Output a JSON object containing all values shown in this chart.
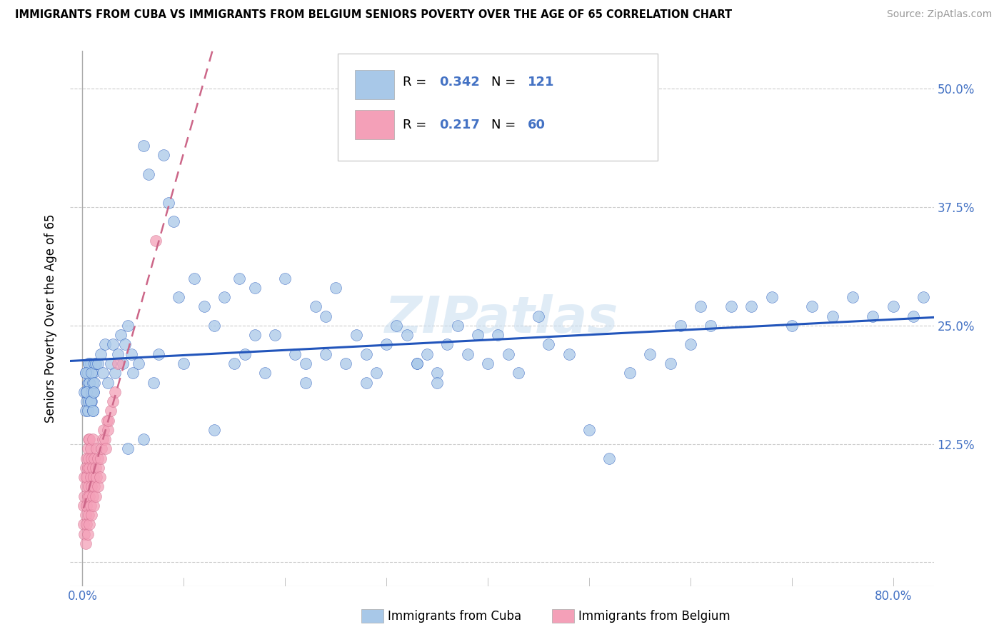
{
  "title": "IMMIGRANTS FROM CUBA VS IMMIGRANTS FROM BELGIUM SENIORS POVERTY OVER THE AGE OF 65 CORRELATION CHART",
  "source": "Source: ZipAtlas.com",
  "ylabel": "Seniors Poverty Over the Age of 65",
  "x_ticks": [
    0.0,
    0.1,
    0.2,
    0.3,
    0.4,
    0.5,
    0.6,
    0.7,
    0.8
  ],
  "x_tick_labels": [
    "0.0%",
    "",
    "",
    "",
    "",
    "",
    "",
    "",
    "80.0%"
  ],
  "y_ticks": [
    0.0,
    0.125,
    0.25,
    0.375,
    0.5
  ],
  "y_tick_labels_right": [
    "",
    "12.5%",
    "25.0%",
    "37.5%",
    "50.0%"
  ],
  "xlim": [
    -0.012,
    0.84
  ],
  "ylim": [
    -0.025,
    0.54
  ],
  "legend1_label": "Immigrants from Cuba",
  "legend2_label": "Immigrants from Belgium",
  "R_cuba": "0.342",
  "N_cuba": "121",
  "R_belgium": "0.217",
  "N_belgium": "60",
  "color_cuba": "#a8c8e8",
  "color_belgium": "#f4a0b8",
  "color_cuba_line": "#2255bb",
  "color_belgium_line": "#cc6688",
  "watermark": "ZIPatlas",
  "cuba_x": [
    0.002,
    0.003,
    0.004,
    0.005,
    0.006,
    0.003,
    0.004,
    0.005,
    0.006,
    0.007,
    0.008,
    0.009,
    0.01,
    0.008,
    0.007,
    0.006,
    0.005,
    0.004,
    0.003,
    0.009,
    0.01,
    0.012,
    0.011,
    0.01,
    0.009,
    0.008,
    0.012,
    0.013,
    0.011,
    0.01,
    0.015,
    0.018,
    0.02,
    0.022,
    0.025,
    0.028,
    0.03,
    0.032,
    0.035,
    0.038,
    0.04,
    0.042,
    0.045,
    0.048,
    0.05,
    0.055,
    0.06,
    0.065,
    0.07,
    0.075,
    0.08,
    0.085,
    0.09,
    0.095,
    0.1,
    0.11,
    0.12,
    0.13,
    0.14,
    0.15,
    0.16,
    0.17,
    0.18,
    0.19,
    0.2,
    0.21,
    0.22,
    0.23,
    0.24,
    0.25,
    0.26,
    0.27,
    0.28,
    0.29,
    0.3,
    0.31,
    0.32,
    0.33,
    0.34,
    0.35,
    0.36,
    0.37,
    0.38,
    0.39,
    0.4,
    0.42,
    0.43,
    0.45,
    0.46,
    0.48,
    0.5,
    0.52,
    0.54,
    0.56,
    0.58,
    0.6,
    0.62,
    0.64,
    0.66,
    0.68,
    0.7,
    0.72,
    0.74,
    0.76,
    0.78,
    0.8,
    0.82,
    0.83,
    0.61,
    0.59,
    0.155,
    0.17,
    0.24,
    0.33,
    0.41,
    0.13,
    0.22,
    0.28,
    0.06,
    0.045,
    0.35
  ],
  "cuba_y": [
    0.18,
    0.2,
    0.17,
    0.19,
    0.21,
    0.16,
    0.18,
    0.2,
    0.17,
    0.19,
    0.21,
    0.18,
    0.2,
    0.17,
    0.19,
    0.21,
    0.16,
    0.18,
    0.2,
    0.17,
    0.19,
    0.21,
    0.18,
    0.16,
    0.2,
    0.17,
    0.19,
    0.21,
    0.18,
    0.16,
    0.21,
    0.22,
    0.2,
    0.23,
    0.19,
    0.21,
    0.23,
    0.2,
    0.22,
    0.24,
    0.21,
    0.23,
    0.25,
    0.22,
    0.2,
    0.21,
    0.44,
    0.41,
    0.19,
    0.22,
    0.43,
    0.38,
    0.36,
    0.28,
    0.21,
    0.3,
    0.27,
    0.25,
    0.28,
    0.21,
    0.22,
    0.29,
    0.2,
    0.24,
    0.3,
    0.22,
    0.19,
    0.27,
    0.22,
    0.29,
    0.21,
    0.24,
    0.22,
    0.2,
    0.23,
    0.25,
    0.24,
    0.21,
    0.22,
    0.2,
    0.23,
    0.25,
    0.22,
    0.24,
    0.21,
    0.22,
    0.2,
    0.26,
    0.23,
    0.22,
    0.14,
    0.11,
    0.2,
    0.22,
    0.21,
    0.23,
    0.25,
    0.27,
    0.27,
    0.28,
    0.25,
    0.27,
    0.26,
    0.28,
    0.26,
    0.27,
    0.26,
    0.28,
    0.27,
    0.25,
    0.3,
    0.24,
    0.26,
    0.21,
    0.24,
    0.14,
    0.21,
    0.19,
    0.13,
    0.12,
    0.19
  ],
  "belgium_x": [
    0.001,
    0.001,
    0.002,
    0.002,
    0.002,
    0.003,
    0.003,
    0.003,
    0.003,
    0.004,
    0.004,
    0.004,
    0.004,
    0.005,
    0.005,
    0.005,
    0.005,
    0.006,
    0.006,
    0.006,
    0.006,
    0.007,
    0.007,
    0.007,
    0.007,
    0.008,
    0.008,
    0.008,
    0.009,
    0.009,
    0.009,
    0.01,
    0.01,
    0.01,
    0.011,
    0.011,
    0.012,
    0.012,
    0.013,
    0.013,
    0.014,
    0.014,
    0.015,
    0.015,
    0.016,
    0.017,
    0.018,
    0.019,
    0.02,
    0.021,
    0.022,
    0.023,
    0.024,
    0.025,
    0.026,
    0.028,
    0.03,
    0.032,
    0.035,
    0.072
  ],
  "belgium_y": [
    0.04,
    0.06,
    0.03,
    0.07,
    0.09,
    0.02,
    0.05,
    0.08,
    0.1,
    0.04,
    0.06,
    0.09,
    0.11,
    0.03,
    0.07,
    0.1,
    0.12,
    0.05,
    0.08,
    0.11,
    0.13,
    0.04,
    0.07,
    0.1,
    0.13,
    0.06,
    0.09,
    0.12,
    0.05,
    0.08,
    0.11,
    0.07,
    0.1,
    0.13,
    0.06,
    0.09,
    0.08,
    0.11,
    0.07,
    0.1,
    0.09,
    0.12,
    0.08,
    0.11,
    0.1,
    0.09,
    0.11,
    0.12,
    0.13,
    0.14,
    0.13,
    0.12,
    0.15,
    0.14,
    0.15,
    0.16,
    0.17,
    0.18,
    0.21,
    0.34
  ]
}
